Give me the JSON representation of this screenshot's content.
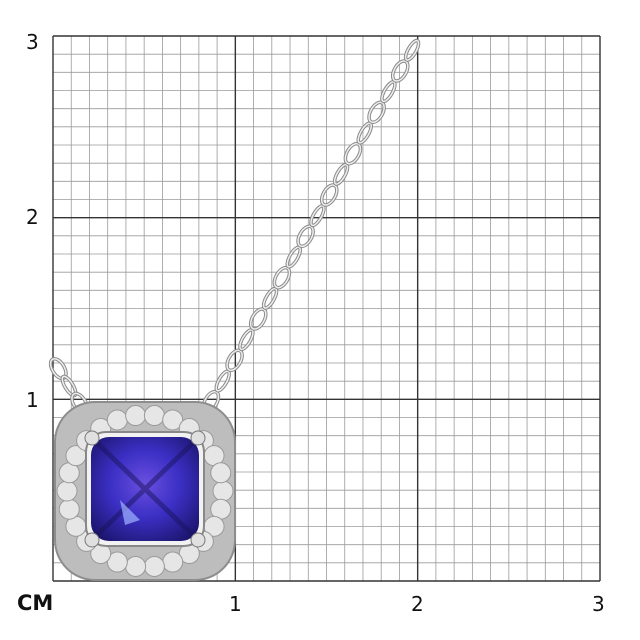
{
  "scale": {
    "unit_label": "CM",
    "x_ticks": [
      "1",
      "2",
      "3"
    ],
    "y_ticks": [
      "1",
      "2",
      "3"
    ],
    "minor_divisions_per_unit": 10,
    "range_cm": [
      0,
      3
    ]
  },
  "colors": {
    "major_grid": "#333333",
    "minor_grid": "#9a9a9a",
    "gem": "#3b2fc4",
    "metal": "#d8d8d8"
  },
  "subject": {
    "item": "pendant-necklace",
    "gem_icon": "cushion-gem",
    "chain_icon": "cable-chain"
  }
}
